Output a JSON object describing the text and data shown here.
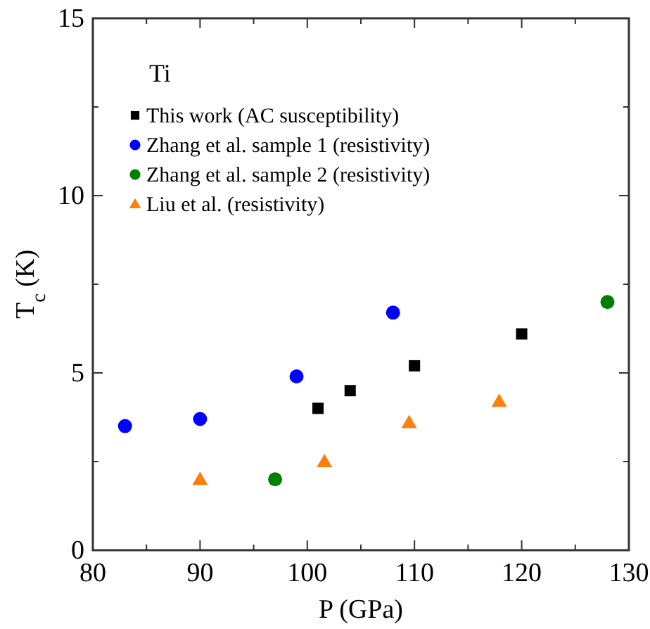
{
  "chart_data": {
    "type": "scatter",
    "xlabel": "P (GPa)",
    "ylabel": "T$_{c}$ (K)",
    "legend_title": "Ti",
    "legend": "top left",
    "grid": false,
    "xlim": [
      80,
      130
    ],
    "xticks": [
      80,
      {
        "value": 85,
        "label": null
      },
      90,
      {
        "value": 95,
        "label": null
      },
      100,
      {
        "value": 105,
        "label": null
      },
      110,
      {
        "value": 115,
        "label": null
      },
      120,
      {
        "value": 125,
        "label": null
      },
      130
    ],
    "ylim": [
      0,
      15
    ],
    "yticks": [
      0,
      {
        "value": 2.5,
        "label": null
      },
      5,
      {
        "value": 7.5,
        "label": null
      },
      10,
      {
        "value": 12.5,
        "label": null
      },
      15
    ],
    "series": [
      {
        "name": "This work (AC susceptibility)",
        "color": "#000000",
        "marker": "square",
        "x": [
          101,
          104,
          110,
          120
        ],
        "values": [
          4.0,
          4.5,
          5.2,
          6.1
        ]
      },
      {
        "name": "Zhang et al. sample 1 (resistivity)",
        "color": "#0000ff",
        "marker": "circle",
        "x": [
          83,
          90,
          99,
          108
        ],
        "values": [
          3.5,
          3.7,
          4.9,
          6.7
        ]
      },
      {
        "name": "Zhang et al. sample 2 (resistivity)",
        "color": "#008000",
        "marker": "circle",
        "x": [
          97,
          128
        ],
        "values": [
          2.0,
          7.0
        ]
      },
      {
        "name": "Liu et al. (resistivity)",
        "color": "#ff7f0e",
        "marker": "triangle",
        "x": [
          90,
          101.6,
          109.5,
          117.9
        ],
        "values": [
          2.0,
          2.5,
          3.6,
          4.2
        ]
      }
    ]
  }
}
